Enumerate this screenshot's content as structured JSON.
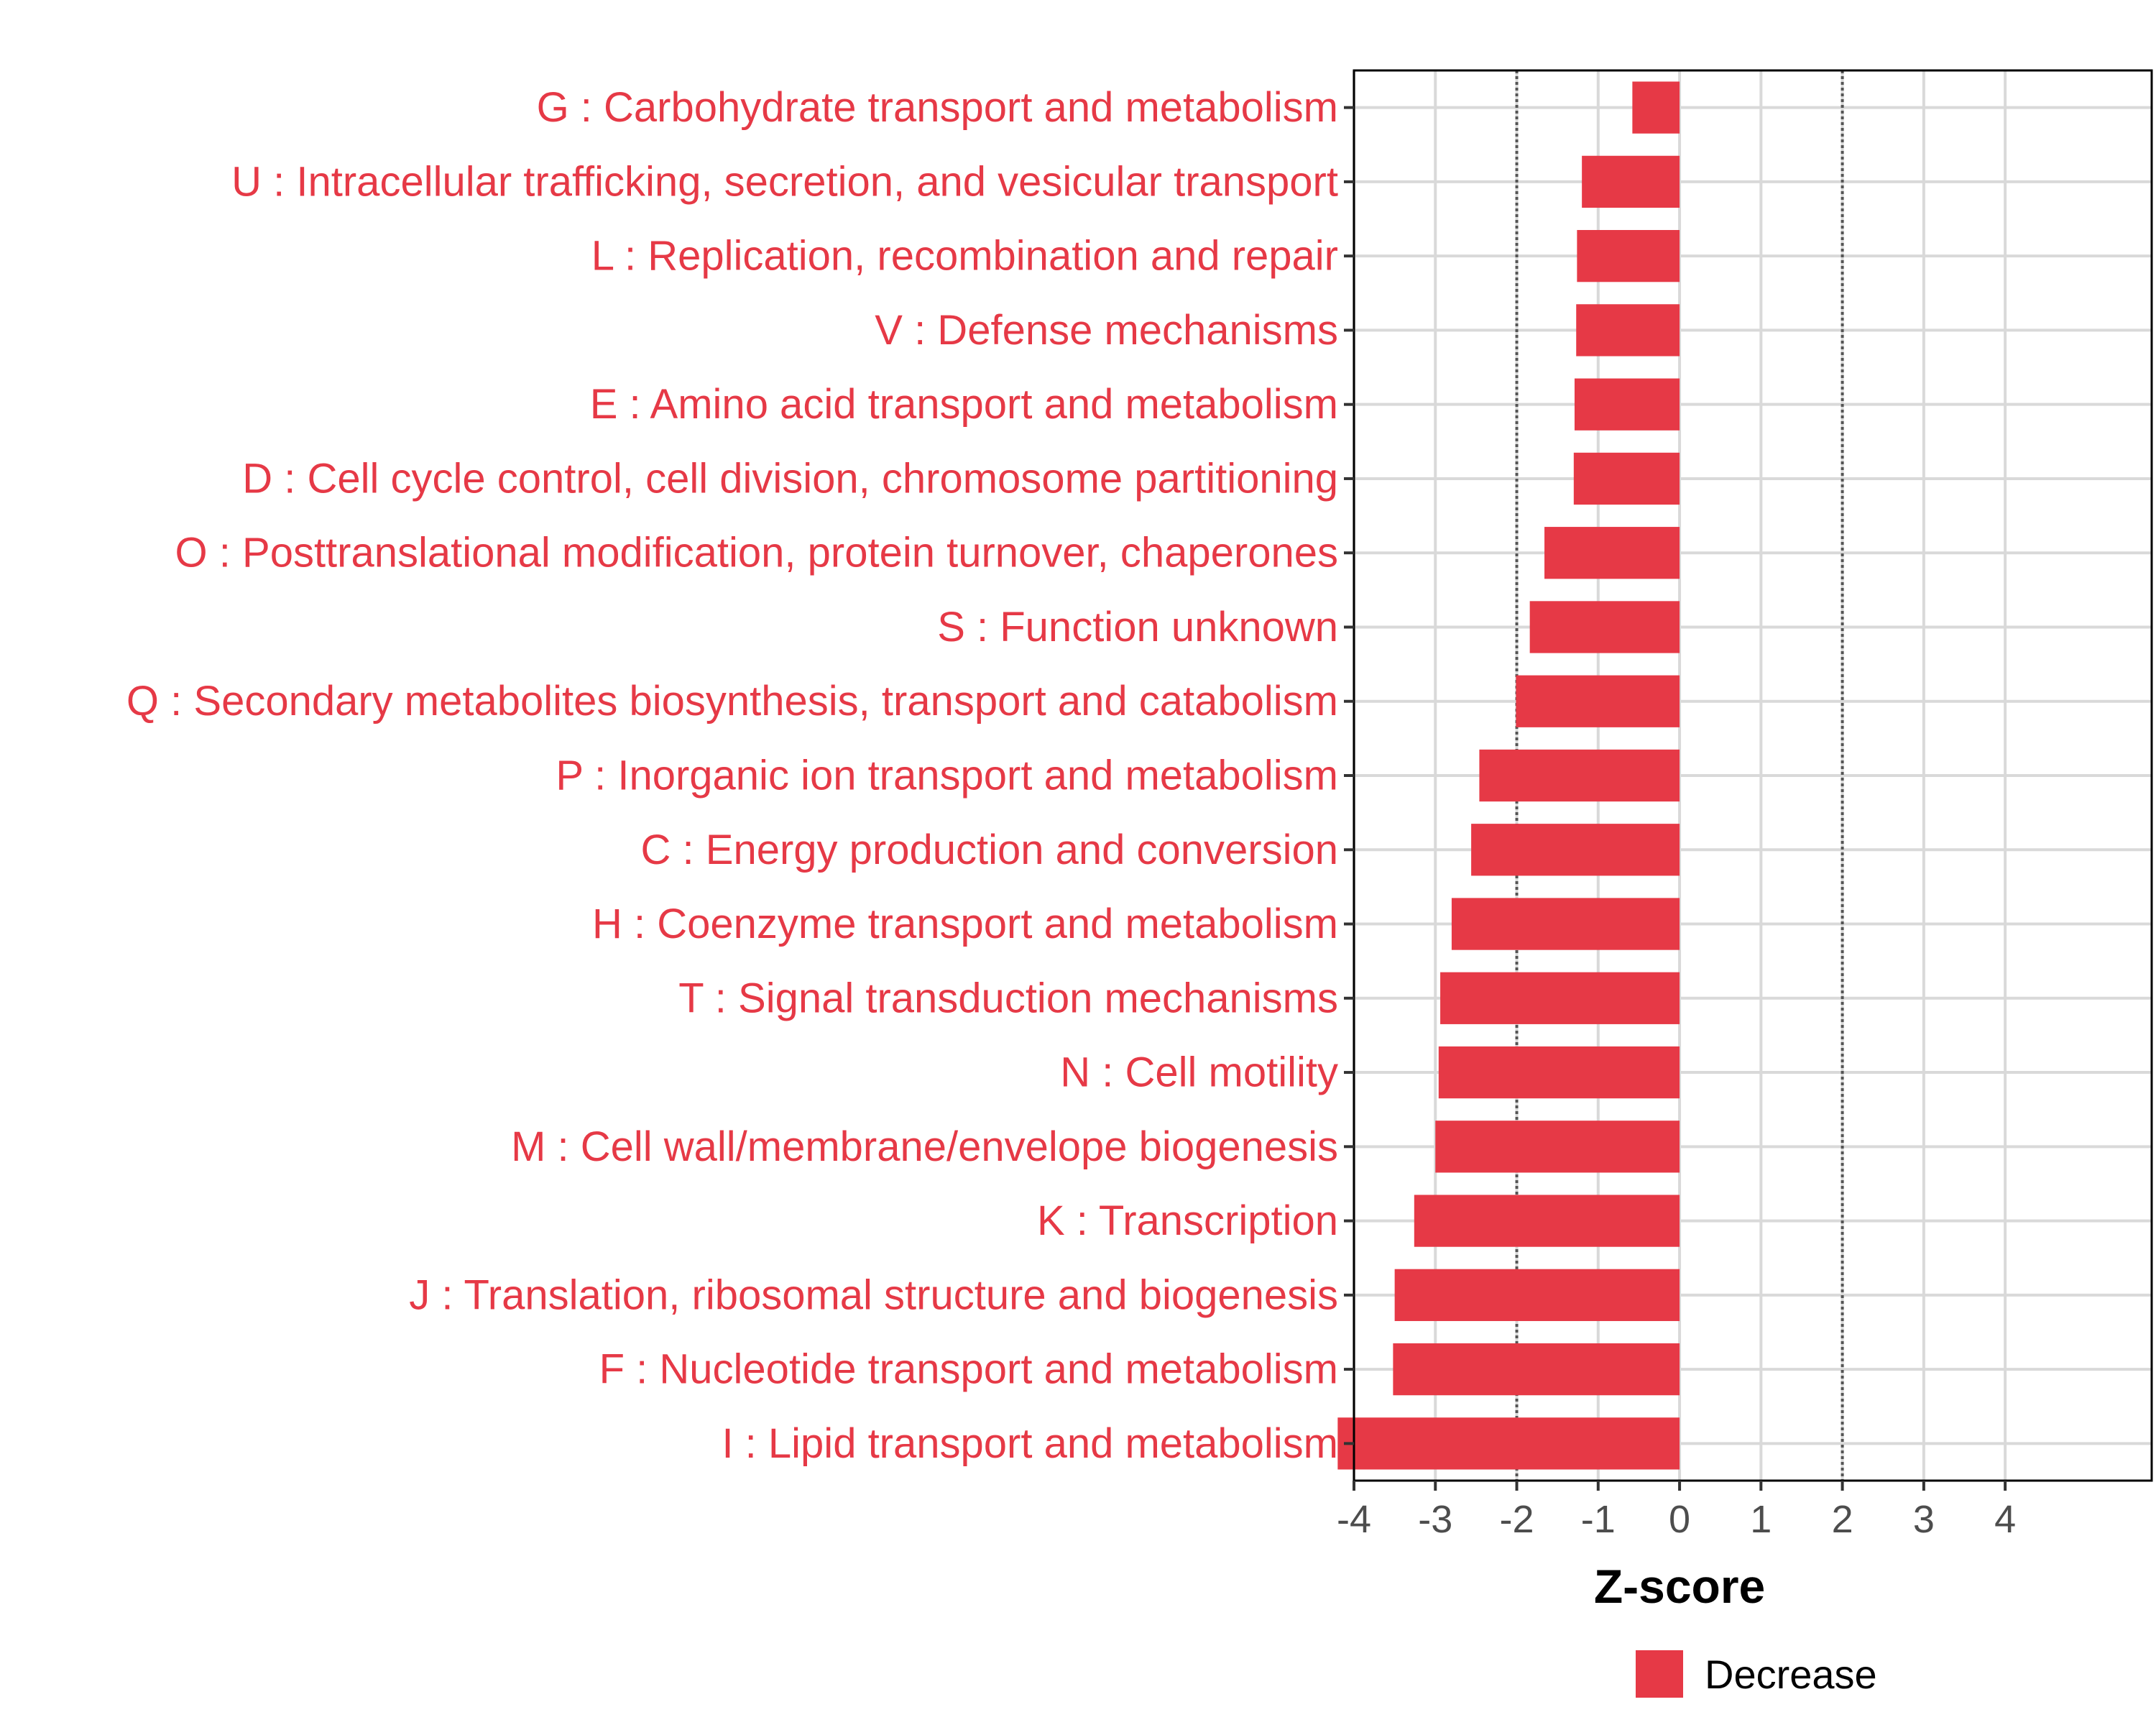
{
  "chart_data": {
    "type": "bar",
    "orientation": "horizontal",
    "title": "",
    "xlabel": "Z-score",
    "ylabel": "",
    "xlim": [
      -4.0,
      5.8
    ],
    "xticks": [
      -4,
      -3,
      -2,
      -1,
      0,
      1,
      2,
      3,
      4
    ],
    "xtick_labels": [
      "-4",
      "-3",
      "-2",
      "-1",
      "0",
      "1",
      "2",
      "3",
      "4"
    ],
    "reference_lines": [
      -2,
      2
    ],
    "grid": true,
    "bar_color": "#e63946",
    "label_color": "#e63946",
    "legend": {
      "position": "bottom",
      "entries": [
        {
          "label": "Decrease",
          "color": "#e63946"
        }
      ]
    },
    "categories": [
      "G : Carbohydrate transport and metabolism",
      "U : Intracellular trafficking, secretion, and vesicular transport",
      "L : Replication, recombination and repair",
      "V : Defense mechanisms",
      "E : Amino acid transport and metabolism",
      "D : Cell cycle control, cell division, chromosome partitioning",
      "O : Posttranslational modification, protein turnover, chaperones",
      "S : Function unknown",
      "Q : Secondary metabolites biosynthesis, transport and catabolism",
      "P : Inorganic ion transport and metabolism",
      "C : Energy production and conversion",
      "H : Coenzyme transport and metabolism",
      "T : Signal transduction mechanisms",
      "N : Cell motility",
      "M : Cell wall/membrane/envelope biogenesis",
      "K : Transcription",
      "J : Translation, ribosomal structure and biogenesis",
      "F : Nucleotide transport and metabolism",
      "I : Lipid transport and metabolism"
    ],
    "values": [
      -0.58,
      -1.2,
      -1.26,
      -1.27,
      -1.29,
      -1.3,
      -1.66,
      -1.84,
      -2.01,
      -2.46,
      -2.56,
      -2.8,
      -2.94,
      -2.96,
      -3.0,
      -3.26,
      -3.5,
      -3.52,
      -4.2
    ]
  }
}
